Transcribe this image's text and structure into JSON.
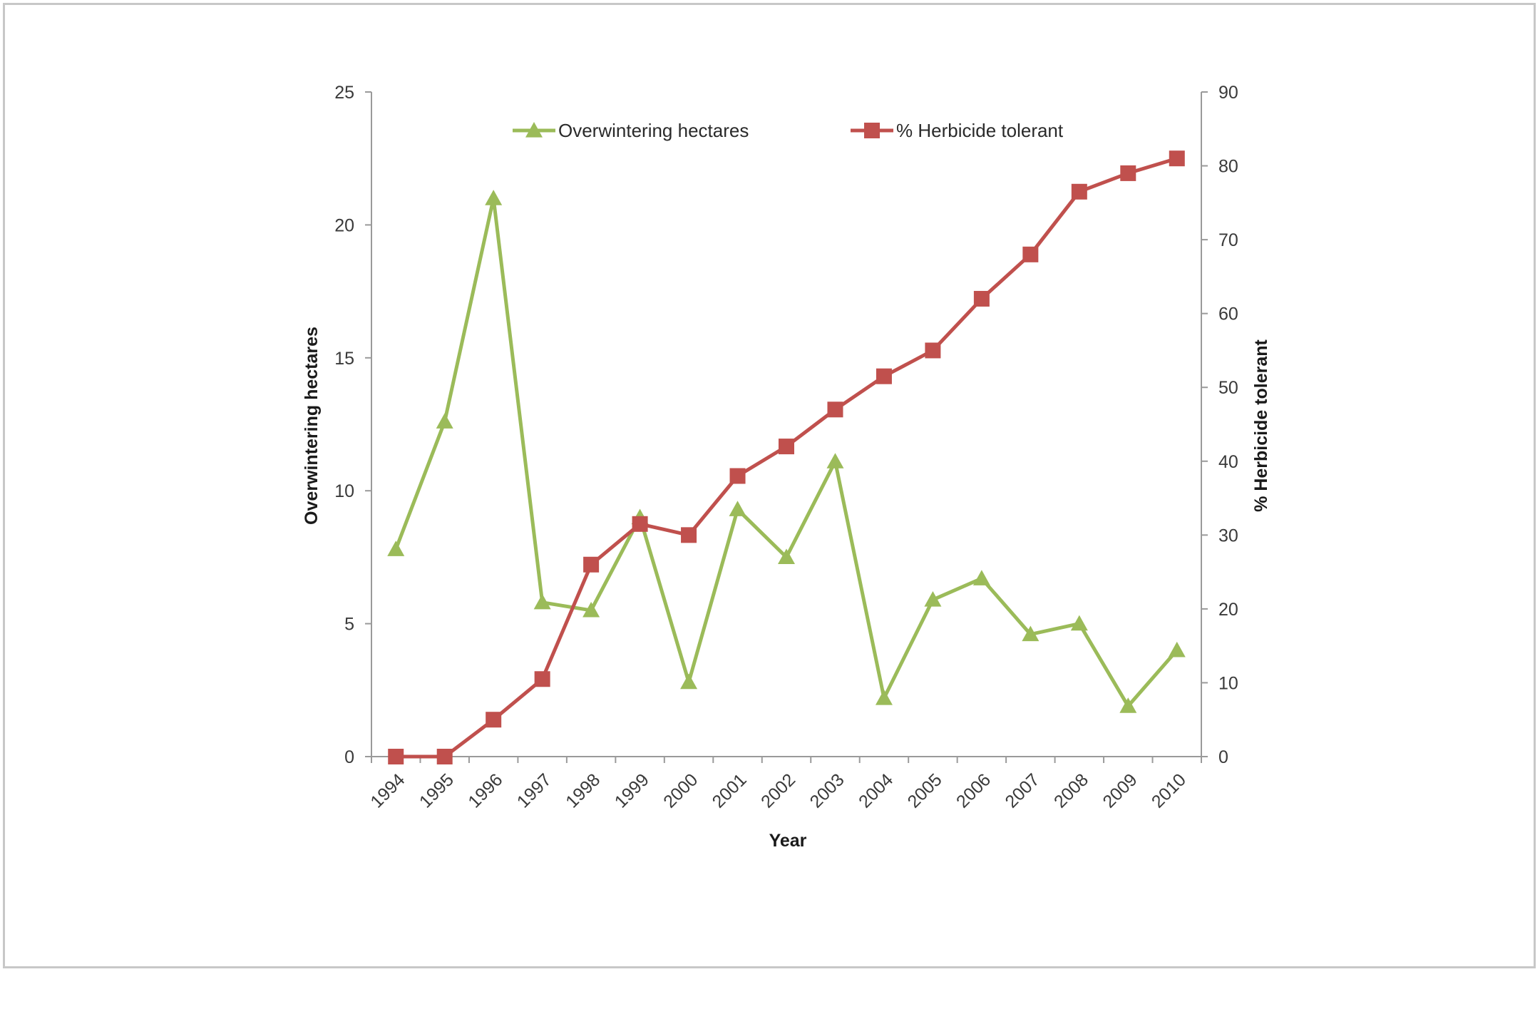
{
  "chart_data": {
    "type": "line",
    "title": "",
    "xlabel": "Year",
    "ylabel": "Overwintering hectares",
    "y2label": "% Herbicide tolerant",
    "categories": [
      "1994",
      "1995",
      "1996",
      "1997",
      "1998",
      "1999",
      "2000",
      "2001",
      "2002",
      "2003",
      "2004",
      "2005",
      "2006",
      "2007",
      "2008",
      "2009",
      "2010"
    ],
    "ylim": [
      0,
      25
    ],
    "y2lim": [
      0,
      90
    ],
    "yticks": [
      "0",
      "5",
      "10",
      "15",
      "20",
      "25"
    ],
    "y2ticks": [
      "0",
      "10",
      "20",
      "30",
      "40",
      "50",
      "60",
      "70",
      "80",
      "90"
    ],
    "legend_position": "top",
    "grid": false,
    "series": [
      {
        "name": "Overwintering hectares",
        "axis": "left",
        "marker": "triangle",
        "color": "#9bbb59",
        "values": [
          7.8,
          12.6,
          21.0,
          5.8,
          5.5,
          9.0,
          2.8,
          9.3,
          7.5,
          11.1,
          2.2,
          5.9,
          6.7,
          4.6,
          5.0,
          1.9,
          4.0
        ]
      },
      {
        "name": "% Herbicide tolerant",
        "axis": "right",
        "marker": "square",
        "color": "#c0504d",
        "values": [
          0,
          0,
          5,
          10.5,
          26,
          31.5,
          30,
          38,
          42,
          47,
          51.5,
          55,
          62,
          68,
          76.5,
          79,
          81
        ]
      }
    ]
  }
}
